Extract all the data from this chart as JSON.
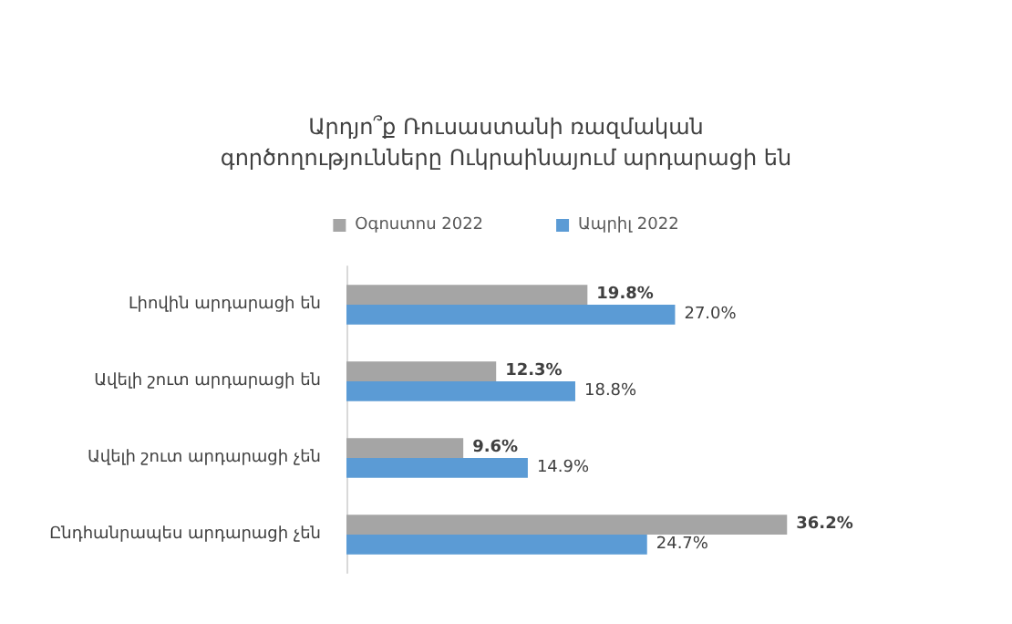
{
  "chart_data": {
    "type": "bar",
    "orientation": "horizontal",
    "title": "Արդյո՞ք Ռուսաստանի ռազմական\nգործողությունները Ուկրաինայում արդարացի են",
    "categories": [
      "Լիովին արդարացի են",
      "Ավելի շուտ արդարացի են",
      "Ավելի շուտ արդարացի չեն",
      "Ընդհանրապես արդարացի չեն"
    ],
    "series": [
      {
        "name": "Օգոստոս 2022",
        "color": "#a5a5a5",
        "values": [
          19.8,
          12.3,
          9.6,
          36.2
        ],
        "value_labels": [
          "19.8%",
          "12.3%",
          "9.6%",
          "36.2%"
        ]
      },
      {
        "name": "Ապրիլ 2022",
        "color": "#5b9bd5",
        "values": [
          27.0,
          18.8,
          14.9,
          24.7
        ],
        "value_labels": [
          "27.0%",
          "18.8%",
          "14.9%",
          "24.7%"
        ]
      }
    ],
    "legend": "top"
  }
}
